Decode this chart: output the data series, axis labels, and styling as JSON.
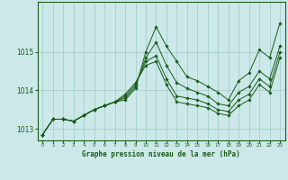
{
  "title": "Graphe pression niveau de la mer (hPa)",
  "background_color": "#cce8e8",
  "plot_bg_color": "#cce8e8",
  "line_color": "#1a5c1a",
  "grid_color": "#a8d0d0",
  "xlim": [
    -0.5,
    23.5
  ],
  "ylim": [
    1012.7,
    1016.3
  ],
  "yticks": [
    1013,
    1014,
    1015
  ],
  "xtick_labels": [
    "0",
    "1",
    "2",
    "3",
    "4",
    "5",
    "6",
    "7",
    "8",
    "9",
    "10",
    "11",
    "12",
    "13",
    "14",
    "15",
    "16",
    "17",
    "18",
    "19",
    "20",
    "21",
    "22",
    "23"
  ],
  "series": [
    [
      1012.85,
      1013.25,
      1013.25,
      1013.2,
      1013.35,
      1013.5,
      1013.6,
      1013.7,
      1013.75,
      1014.05,
      1015.0,
      1015.65,
      1015.15,
      1014.75,
      1014.35,
      1014.25,
      1014.1,
      1013.95,
      1013.75,
      1014.25,
      1014.45,
      1015.05,
      1014.85,
      1015.75
    ],
    [
      1012.85,
      1013.25,
      1013.25,
      1013.2,
      1013.35,
      1013.5,
      1013.6,
      1013.7,
      1013.8,
      1014.1,
      1014.85,
      1015.25,
      1014.65,
      1014.2,
      1014.05,
      1013.95,
      1013.85,
      1013.65,
      1013.6,
      1013.95,
      1014.1,
      1014.5,
      1014.3,
      1015.15
    ],
    [
      1012.85,
      1013.25,
      1013.25,
      1013.2,
      1013.35,
      1013.5,
      1013.6,
      1013.7,
      1013.85,
      1014.15,
      1014.75,
      1014.9,
      1014.3,
      1013.85,
      1013.8,
      1013.75,
      1013.65,
      1013.5,
      1013.45,
      1013.75,
      1013.9,
      1014.3,
      1014.1,
      1015.0
    ],
    [
      1012.85,
      1013.25,
      1013.25,
      1013.2,
      1013.35,
      1013.5,
      1013.6,
      1013.7,
      1013.9,
      1014.2,
      1014.65,
      1014.75,
      1014.15,
      1013.7,
      1013.65,
      1013.6,
      1013.55,
      1013.4,
      1013.35,
      1013.6,
      1013.75,
      1014.15,
      1013.95,
      1014.85
    ]
  ]
}
